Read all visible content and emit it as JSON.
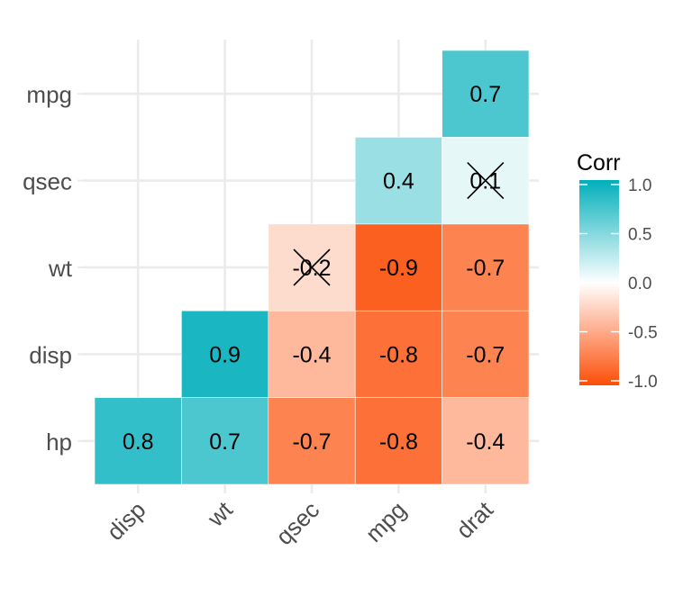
{
  "chart_data": {
    "type": "heatmap",
    "title": "",
    "xlabel": "",
    "ylabel": "",
    "x_categories": [
      "disp",
      "wt",
      "qsec",
      "mpg",
      "drat"
    ],
    "y_categories": [
      "hp",
      "disp",
      "wt",
      "qsec",
      "mpg"
    ],
    "cells": [
      {
        "x": "disp",
        "y": "hp",
        "value": 0.8,
        "label": "0.8",
        "insignificant": false
      },
      {
        "x": "wt",
        "y": "hp",
        "value": 0.7,
        "label": "0.7",
        "insignificant": false
      },
      {
        "x": "qsec",
        "y": "hp",
        "value": -0.7,
        "label": "-0.7",
        "insignificant": false
      },
      {
        "x": "mpg",
        "y": "hp",
        "value": -0.8,
        "label": "-0.8",
        "insignificant": false
      },
      {
        "x": "drat",
        "y": "hp",
        "value": -0.4,
        "label": "-0.4",
        "insignificant": false
      },
      {
        "x": "wt",
        "y": "disp",
        "value": 0.9,
        "label": "0.9",
        "insignificant": false
      },
      {
        "x": "qsec",
        "y": "disp",
        "value": -0.4,
        "label": "-0.4",
        "insignificant": false
      },
      {
        "x": "mpg",
        "y": "disp",
        "value": -0.8,
        "label": "-0.8",
        "insignificant": false
      },
      {
        "x": "drat",
        "y": "disp",
        "value": -0.7,
        "label": "-0.7",
        "insignificant": false
      },
      {
        "x": "qsec",
        "y": "wt",
        "value": -0.2,
        "label": "-0.2",
        "insignificant": true
      },
      {
        "x": "mpg",
        "y": "wt",
        "value": -0.9,
        "label": "-0.9",
        "insignificant": false
      },
      {
        "x": "drat",
        "y": "wt",
        "value": -0.7,
        "label": "-0.7",
        "insignificant": false
      },
      {
        "x": "mpg",
        "y": "qsec",
        "value": 0.4,
        "label": "0.4",
        "insignificant": false
      },
      {
        "x": "drat",
        "y": "qsec",
        "value": 0.1,
        "label": "0.1",
        "insignificant": true
      },
      {
        "x": "drat",
        "y": "mpg",
        "value": 0.7,
        "label": "0.7",
        "insignificant": false
      }
    ],
    "legend": {
      "title": "Corr",
      "placement": "right",
      "range": [
        -1.0,
        1.0
      ],
      "ticks": [
        {
          "value": 1.0,
          "label": "1.0"
        },
        {
          "value": 0.5,
          "label": "0.5"
        },
        {
          "value": 0.0,
          "label": "0.0"
        },
        {
          "value": -0.5,
          "label": "-0.5"
        },
        {
          "value": -1.0,
          "label": "-1.0"
        }
      ]
    },
    "colors": {
      "high": "#00AFBB",
      "mid": "#FFFFFF",
      "low": "#FC4E07",
      "grid": "#EBEBEB",
      "tick_text": "#4D4D4D",
      "label_text": "#000000"
    }
  }
}
